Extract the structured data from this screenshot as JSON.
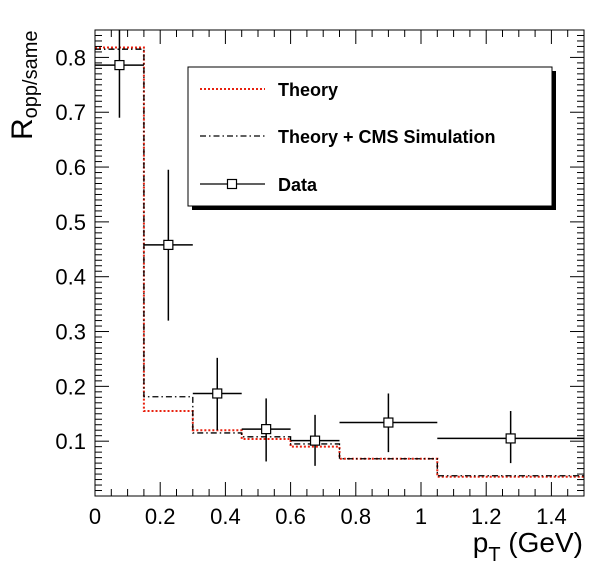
{
  "chart_data": {
    "type": "step-line",
    "xlabel_main": "p",
    "xlabel_sub": "T",
    "xlabel_unit": " (GeV)",
    "ylabel_main": "R",
    "ylabel_sub": "opp/same",
    "xlim": [
      0,
      1.5
    ],
    "ylim": [
      0,
      0.85
    ],
    "x_ticks": [
      {
        "v": 0,
        "label": "0"
      },
      {
        "v": 0.2,
        "label": "0.2"
      },
      {
        "v": 0.4,
        "label": "0.4"
      },
      {
        "v": 0.6,
        "label": "0.6"
      },
      {
        "v": 0.8,
        "label": "0.8"
      },
      {
        "v": 1.0,
        "label": "1"
      },
      {
        "v": 1.2,
        "label": "1.2"
      },
      {
        "v": 1.4,
        "label": "1.4"
      }
    ],
    "y_ticks": [
      {
        "v": 0.1,
        "label": "0.1"
      },
      {
        "v": 0.2,
        "label": "0.2"
      },
      {
        "v": 0.3,
        "label": "0.3"
      },
      {
        "v": 0.4,
        "label": "0.4"
      },
      {
        "v": 0.5,
        "label": "0.5"
      },
      {
        "v": 0.6,
        "label": "0.6"
      },
      {
        "v": 0.7,
        "label": "0.7"
      },
      {
        "v": 0.8,
        "label": "0.8"
      }
    ],
    "bin_edges": [
      0,
      0.15,
      0.3,
      0.45,
      0.6,
      0.75,
      1.05,
      1.5
    ],
    "series": [
      {
        "name": "Theory",
        "style": "dotted",
        "color": "#e8210f",
        "values": [
          0.818,
          0.155,
          0.12,
          0.104,
          0.09,
          0.068,
          0.035
        ]
      },
      {
        "name": "Theory + CMS Simulation",
        "style": "dashdot",
        "color": "#000000",
        "values": [
          0.815,
          0.181,
          0.115,
          0.108,
          0.095,
          0.068,
          0.037
        ]
      }
    ],
    "data": {
      "name": "Data",
      "points": [
        {
          "x": 0.075,
          "y": 0.786,
          "xerr": 0.075,
          "ylo": 0.69,
          "yhi": 0.875
        },
        {
          "x": 0.225,
          "y": 0.458,
          "xerr": 0.075,
          "ylo": 0.32,
          "yhi": 0.595
        },
        {
          "x": 0.375,
          "y": 0.187,
          "xerr": 0.075,
          "ylo": 0.12,
          "yhi": 0.252
        },
        {
          "x": 0.525,
          "y": 0.122,
          "xerr": 0.075,
          "ylo": 0.063,
          "yhi": 0.178
        },
        {
          "x": 0.675,
          "y": 0.101,
          "xerr": 0.075,
          "ylo": 0.055,
          "yhi": 0.148
        },
        {
          "x": 0.9,
          "y": 0.134,
          "xerr": 0.15,
          "ylo": 0.08,
          "yhi": 0.187
        },
        {
          "x": 1.275,
          "y": 0.105,
          "xerr": 0.225,
          "ylo": 0.06,
          "yhi": 0.155
        }
      ]
    },
    "legend_position": "top-right",
    "grid": false
  }
}
